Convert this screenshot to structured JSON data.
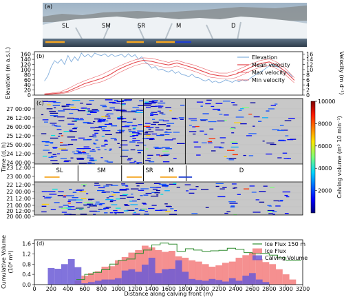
{
  "photo": {
    "panel_label": "(a)",
    "zones": [
      "SL",
      "SM",
      "SR",
      "M",
      "D"
    ]
  },
  "colors": {
    "elevation": "#6a9fd6",
    "velocity": "#e5484d",
    "ice_flux": "#f37d7d",
    "ice_flux_150": "#2e8b2e",
    "calving_volume": "#6b5bd6",
    "segment_orange": "#f5a623",
    "segment_blue": "#1f3fd0",
    "raster_bg": "#c8c8c8"
  },
  "chart_data": [
    {
      "panel": "(b)",
      "type": "line",
      "ylabel_left": "Elevation (m a.s.l.)",
      "ylabel_right": "Velocity (m d⁻¹)",
      "y_left_ticks": [
        "0",
        "20",
        "40",
        "60",
        "80",
        "100",
        "120",
        "140",
        "160"
      ],
      "y_right_ticks": [
        "0",
        "2",
        "4",
        "6",
        "8",
        "10",
        "12",
        "14",
        "16"
      ],
      "ylim_left": [
        0,
        170
      ],
      "ylim_right": [
        0,
        17
      ],
      "xlim": [
        0,
        3200
      ],
      "legend": [
        "Elevation",
        "Mean velocity",
        "Max velocity",
        "Min velocity"
      ],
      "legend_position": "right",
      "series": [
        {
          "name": "Elevation",
          "x": [
            120,
            160,
            200,
            240,
            280,
            320,
            360,
            400,
            440,
            480,
            520,
            560,
            600,
            640,
            680,
            720,
            760,
            800,
            840,
            880,
            920,
            960,
            1000,
            1040,
            1080,
            1120,
            1160,
            1200,
            1240,
            1280,
            1320,
            1360,
            1400,
            1440,
            1480,
            1520,
            1560,
            1600,
            1640,
            1680,
            1720,
            1760,
            1800,
            1840,
            1880,
            1920,
            1960,
            2000,
            2040,
            2080,
            2120,
            2160,
            2200,
            2240,
            2280,
            2320,
            2360,
            2400,
            2440,
            2480,
            2520,
            2560,
            2600,
            2640,
            2680,
            2720,
            2760,
            2800,
            2840,
            2880,
            2920,
            2960,
            3000,
            3040,
            3080
          ],
          "y": [
            55,
            75,
            110,
            135,
            125,
            140,
            120,
            155,
            130,
            150,
            135,
            165,
            150,
            160,
            148,
            165,
            158,
            155,
            162,
            150,
            160,
            152,
            155,
            160,
            148,
            162,
            150,
            158,
            140,
            150,
            130,
            120,
            105,
            112,
            98,
            102,
            95,
            90,
            98,
            85,
            92,
            80,
            78,
            72,
            82,
            70,
            68,
            60,
            55,
            62,
            50,
            55,
            48,
            52,
            60,
            55,
            50,
            58,
            52,
            60,
            55,
            62,
            72,
            80,
            88,
            95,
            105,
            115,
            120,
            112,
            108,
            100,
            92,
            85,
            70
          ]
        },
        {
          "name": "Mean velocity",
          "x": [
            120,
            200,
            300,
            400,
            500,
            600,
            700,
            800,
            900,
            1000,
            1100,
            1200,
            1300,
            1400,
            1500,
            1600,
            1700,
            1800,
            1900,
            2000,
            2100,
            2200,
            2300,
            2400,
            2500,
            2600,
            2700,
            2800,
            2900,
            3000,
            3100
          ],
          "y": [
            0.3,
            0.5,
            0.8,
            1.5,
            3.0,
            4.5,
            5.5,
            6.5,
            8.0,
            10.0,
            11.5,
            12.8,
            13.6,
            13.2,
            12.4,
            11.8,
            12.6,
            11.6,
            10.6,
            9.4,
            8.2,
            7.6,
            7.4,
            8.2,
            9.6,
            11.2,
            12.4,
            13.0,
            11.6,
            9.0,
            5.8
          ]
        },
        {
          "name": "Max velocity",
          "x": [
            120,
            200,
            300,
            400,
            500,
            600,
            700,
            800,
            900,
            1000,
            1100,
            1200,
            1300,
            1400,
            1500,
            1600,
            1700,
            1800,
            1900,
            2000,
            2100,
            2200,
            2300,
            2400,
            2500,
            2600,
            2700,
            2800,
            2900,
            3000,
            3100
          ],
          "y": [
            0.5,
            0.8,
            1.2,
            2.5,
            4.2,
            5.6,
            6.8,
            8.0,
            9.6,
            11.2,
            12.6,
            13.8,
            14.6,
            14.4,
            13.6,
            12.8,
            13.6,
            12.6,
            11.8,
            10.6,
            9.4,
            8.6,
            8.6,
            9.6,
            11.0,
            12.4,
            13.6,
            14.2,
            12.8,
            10.2,
            6.8
          ]
        },
        {
          "name": "Min velocity",
          "x": [
            120,
            200,
            300,
            400,
            500,
            600,
            700,
            800,
            900,
            1000,
            1100,
            1200,
            1300,
            1400,
            1500,
            1600,
            1700,
            1800,
            1900,
            2000,
            2100,
            2200,
            2300,
            2400,
            2500,
            2600,
            2700,
            2800,
            2900,
            3000,
            3100
          ],
          "y": [
            0.2,
            0.3,
            0.5,
            1.0,
            2.2,
            3.4,
            4.4,
            5.2,
            6.6,
            8.6,
            10.2,
            11.6,
            12.4,
            12.0,
            11.2,
            10.6,
            11.4,
            10.4,
            9.4,
            8.2,
            7.0,
            6.6,
            6.2,
            6.8,
            8.2,
            9.8,
            11.0,
            11.6,
            10.2,
            7.8,
            4.8
          ]
        }
      ]
    },
    {
      "panel": "(c)",
      "type": "heatmap",
      "ylabel": "Time (d, h)",
      "colorbar_label": "Calving volume (m³ 10 min⁻¹)",
      "colorbar_ticks": [
        "2000",
        "4000",
        "6000",
        "8000",
        "10000"
      ],
      "colorbar_range": [
        0,
        10000
      ],
      "upper_time_ticks": [
        "27 00:00",
        "26 12:00",
        "26 00:00",
        "25 12:00",
        "25 00:00",
        "24 12:00",
        "24 00:00",
        "23 12:00"
      ],
      "middle_time_ticks": [
        "23 00:00",
        "22 12:00"
      ],
      "lower_time_ticks": [
        "22 00:00",
        "21 12:00",
        "21 00:00",
        "20 12:00",
        "20 00:00"
      ],
      "section_labels": [
        {
          "name": "SL",
          "x": 300
        },
        {
          "name": "SM",
          "x": 800
        },
        {
          "name": "SR",
          "x": 1370
        },
        {
          "name": "M",
          "x": 1630
        },
        {
          "name": "D",
          "x": 2470
        }
      ],
      "section_dividers_x": [
        520,
        1040,
        1300,
        1810
      ],
      "upper_dividers_x": [
        1040,
        1300,
        1800
      ],
      "orange_segments": [
        [
          120,
          300
        ],
        [
          1100,
          1280
        ],
        [
          1500,
          1700
        ]
      ],
      "blue_segments": [
        [
          1720,
          1880
        ]
      ]
    },
    {
      "panel": "(d)",
      "type": "bar",
      "xlabel": "Distance along calving front (m)",
      "ylabel": "Cumulative Volume",
      "ylabel_unit": "(10⁶ m³)",
      "x_ticks": [
        0,
        200,
        400,
        600,
        800,
        1000,
        1200,
        1400,
        1600,
        1800,
        2000,
        2200,
        2400,
        2600,
        2800,
        3000,
        3200
      ],
      "y_ticks": [
        "0.0",
        "0.4",
        "0.8",
        "1.2",
        "1.6"
      ],
      "xlim": [
        0,
        3200
      ],
      "ylim": [
        0,
        1.75
      ],
      "bin_width": 80,
      "legend": [
        "Ice Flux 150 m",
        "Ice Flux",
        "Calving Volume"
      ],
      "legend_position": "right",
      "bins": [
        120,
        200,
        280,
        360,
        440,
        520,
        600,
        680,
        760,
        840,
        920,
        1000,
        1080,
        1160,
        1240,
        1320,
        1400,
        1480,
        1560,
        1640,
        1720,
        1800,
        1880,
        1960,
        2040,
        2120,
        2200,
        2280,
        2360,
        2440,
        2520,
        2600,
        2680,
        2760,
        2840,
        2920,
        3000,
        3080
      ],
      "series": [
        {
          "name": "Calving Volume",
          "values": [
            0.0,
            0.65,
            0.62,
            0.8,
            1.0,
            0.68,
            0.05,
            0.1,
            0.15,
            0.2,
            0.2,
            0.25,
            0.55,
            0.6,
            0.5,
            0.78,
            1.05,
            0.45,
            0.6,
            0.62,
            0.95,
            0.5,
            0.22,
            0.18,
            0.15,
            0.22,
            0.18,
            0.12,
            0.25,
            0.15,
            0.35,
            0.45,
            0.2,
            0.1,
            0.0,
            0.0,
            0.0,
            0.0
          ]
        },
        {
          "name": "Ice Flux",
          "values": [
            0.0,
            0.0,
            0.0,
            0.0,
            0.0,
            0.15,
            0.35,
            0.45,
            0.52,
            0.7,
            0.72,
            0.95,
            1.08,
            1.25,
            1.35,
            1.52,
            1.45,
            1.35,
            1.28,
            1.32,
            1.1,
            1.05,
            0.95,
            0.9,
            0.8,
            0.7,
            0.75,
            0.85,
            0.9,
            1.05,
            1.15,
            1.25,
            1.0,
            0.88,
            0.8,
            0.6,
            0.4,
            0.2
          ]
        },
        {
          "name": "Ice Flux 150 m",
          "x": [
            500,
            600,
            700,
            800,
            900,
            1000,
            1100,
            1200,
            1300,
            1400,
            1500,
            1600,
            1700,
            1800,
            1900,
            2000,
            2100,
            2200,
            2300,
            2400,
            2500,
            2600,
            2700,
            2800,
            2900,
            3000,
            3100,
            3180
          ],
          "y": [
            0.2,
            0.4,
            0.48,
            0.58,
            0.8,
            0.95,
            1.0,
            1.22,
            1.35,
            1.55,
            1.62,
            1.58,
            1.3,
            1.4,
            1.35,
            1.3,
            1.32,
            1.34,
            1.42,
            1.38,
            1.25,
            1.2,
            1.22,
            1.15,
            1.05,
            0.95,
            0.95,
            0.95
          ]
        }
      ]
    }
  ]
}
